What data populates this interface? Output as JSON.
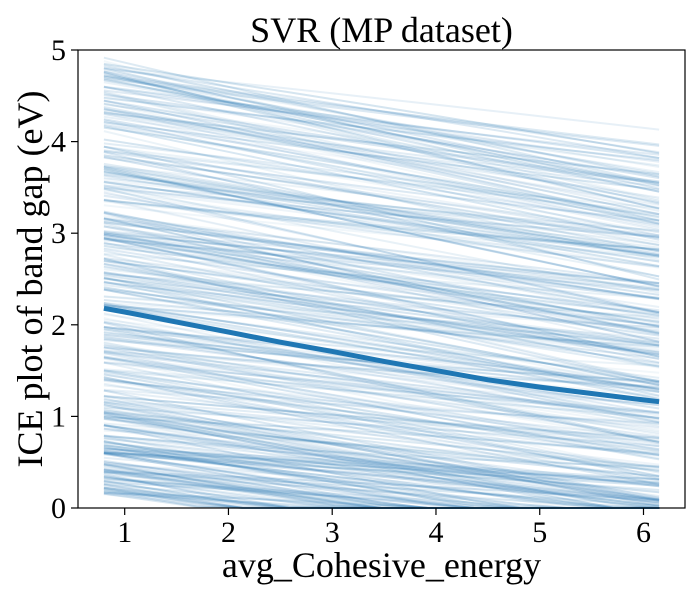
{
  "chart_data": {
    "type": "line",
    "title": "SVR (MP dataset)",
    "xlabel": "avg_Cohesive_energy",
    "ylabel": "ICE plot of band gap (eV)",
    "xlim": [
      0.8,
      6.15
    ],
    "ylim": [
      0,
      5
    ],
    "xticks": [
      1,
      2,
      3,
      4,
      5,
      6
    ],
    "yticks": [
      0,
      1,
      2,
      3,
      4,
      5
    ],
    "grid": false,
    "legend": "none",
    "colors": {
      "ice_lines": "#2d7bb6",
      "average_line": "#1f77b4"
    },
    "ice_description": {
      "count": 400,
      "start_y_range": [
        0.15,
        4.95
      ],
      "end_y_range": [
        0.0,
        4.85
      ]
    },
    "series": [
      {
        "x": [
          0.8,
          1.0,
          1.5,
          2.0,
          2.5,
          3.0,
          3.5,
          4.0,
          4.5,
          5.0,
          5.5,
          6.0,
          6.15
        ],
        "y": [
          2.18,
          2.14,
          2.03,
          1.92,
          1.81,
          1.71,
          1.6,
          1.5,
          1.4,
          1.32,
          1.25,
          1.18,
          1.16
        ]
      }
    ]
  }
}
